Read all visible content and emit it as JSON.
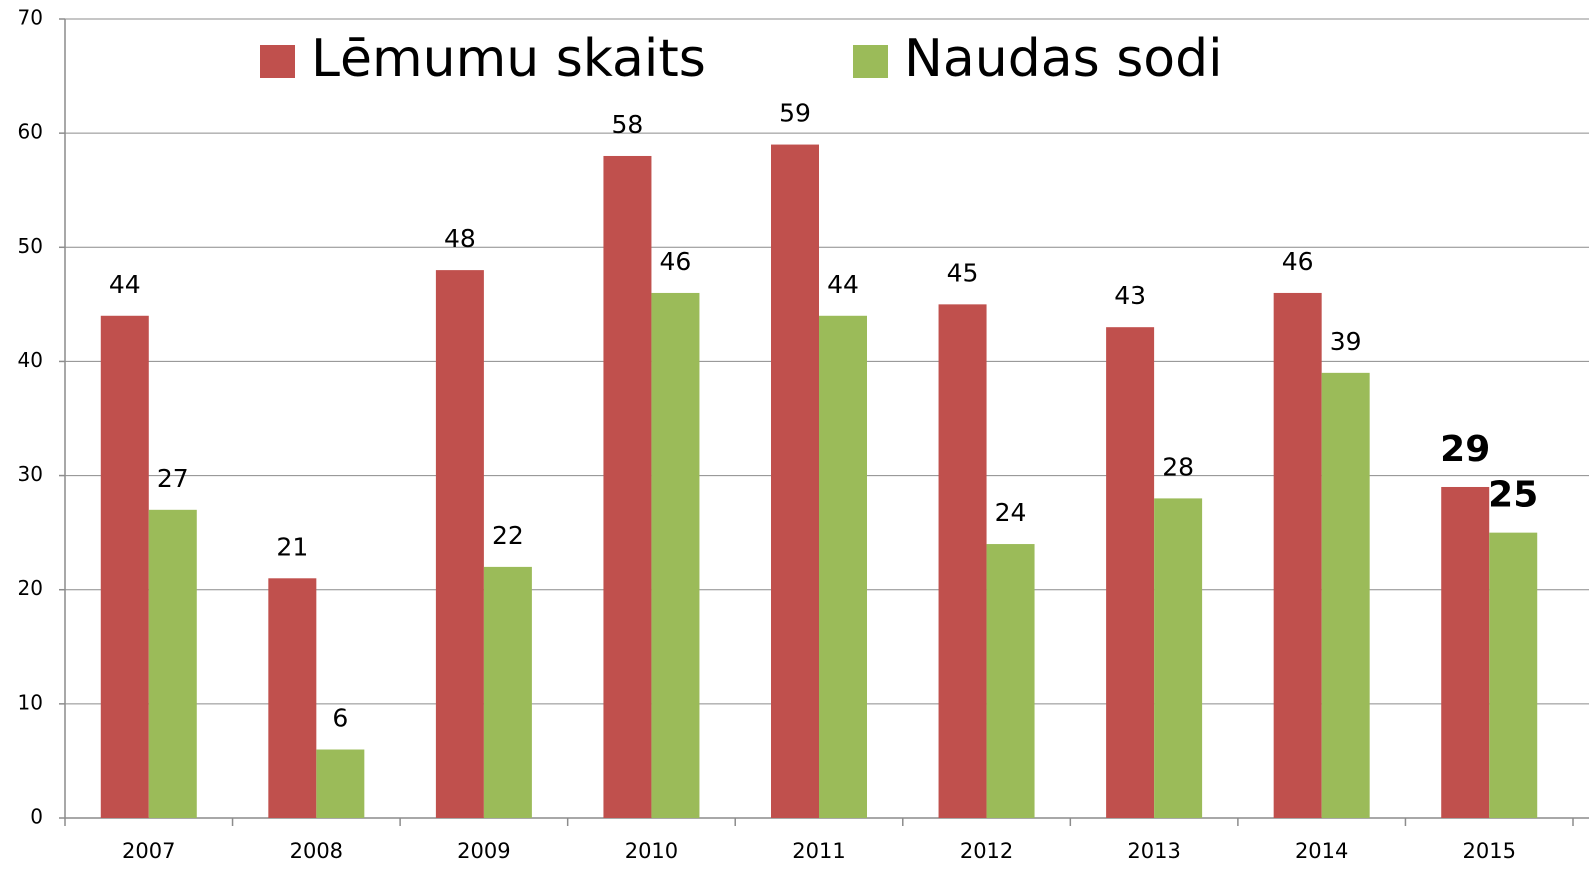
{
  "chart_data": {
    "type": "bar",
    "categories": [
      "2007",
      "2008",
      "2009",
      "2010",
      "2011",
      "2012",
      "2013",
      "2014",
      "2015"
    ],
    "series": [
      {
        "name": "Lēmumu skaits",
        "color": "#c0504d",
        "values": [
          44,
          21,
          48,
          58,
          59,
          45,
          43,
          46,
          29
        ]
      },
      {
        "name": "Naudas sodi",
        "color": "#9bbb59",
        "values": [
          27,
          6,
          22,
          46,
          44,
          24,
          28,
          39,
          25
        ]
      }
    ],
    "ylim": [
      0,
      70
    ],
    "yticks": [
      0,
      10,
      20,
      30,
      40,
      50,
      60,
      70
    ],
    "grid": true,
    "legend": "top"
  }
}
